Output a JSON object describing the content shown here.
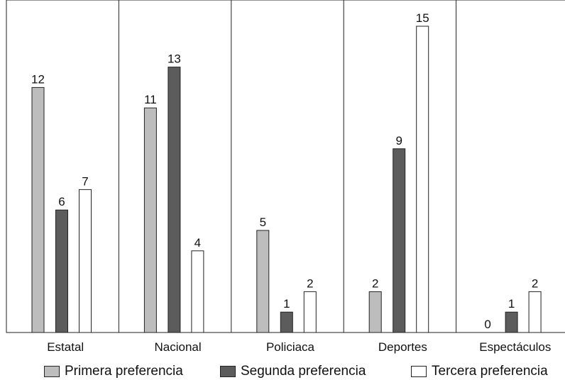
{
  "chart_data": {
    "type": "bar",
    "categories": [
      "Estatal",
      "Nacional",
      "Policiaca",
      "Deportes",
      "Espectáculos"
    ],
    "series": [
      {
        "name": "Primera preferencia",
        "color": "#bdbdbd",
        "values": [
          12,
          11,
          5,
          2,
          0
        ]
      },
      {
        "name": "Segunda preferencia",
        "color": "#5c5c5c",
        "values": [
          6,
          13,
          1,
          9,
          1
        ]
      },
      {
        "name": "Tercera preferencia",
        "color": "#ffffff",
        "values": [
          7,
          4,
          2,
          15,
          2
        ]
      }
    ],
    "ylim": [
      0,
      15
    ],
    "grid": false,
    "legend": "bottom",
    "title": "",
    "xlabel": "",
    "ylabel": ""
  }
}
